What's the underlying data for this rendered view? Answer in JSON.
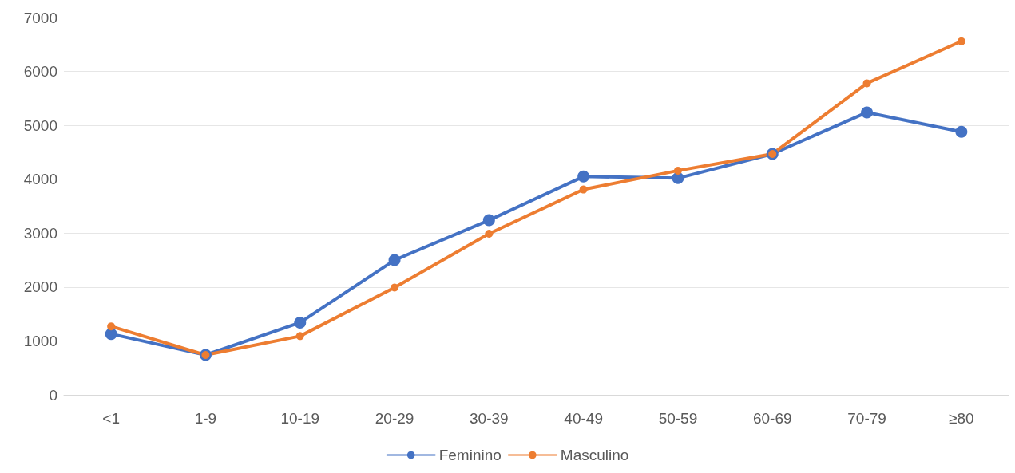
{
  "chart_data": {
    "type": "line",
    "categories": [
      "<1",
      "1-9",
      "10-19",
      "20-29",
      "30-39",
      "40-49",
      "50-59",
      "60-69",
      "70-79",
      "≥80"
    ],
    "series": [
      {
        "name": "Feminino",
        "color": "#4472c4",
        "values": [
          1130,
          740,
          1340,
          2500,
          3240,
          4050,
          4020,
          4470,
          5240,
          4880
        ]
      },
      {
        "name": "Masculino",
        "color": "#ed7d31",
        "values": [
          1270,
          740,
          1090,
          1990,
          2990,
          3810,
          4160,
          4470,
          5780,
          6560
        ]
      }
    ],
    "ylim": [
      0,
      7000
    ],
    "yticks": [
      0,
      1000,
      2000,
      3000,
      4000,
      5000,
      6000,
      7000
    ],
    "grid": "y",
    "legend": "bottom",
    "marker": "circle",
    "line_style": "solid"
  }
}
